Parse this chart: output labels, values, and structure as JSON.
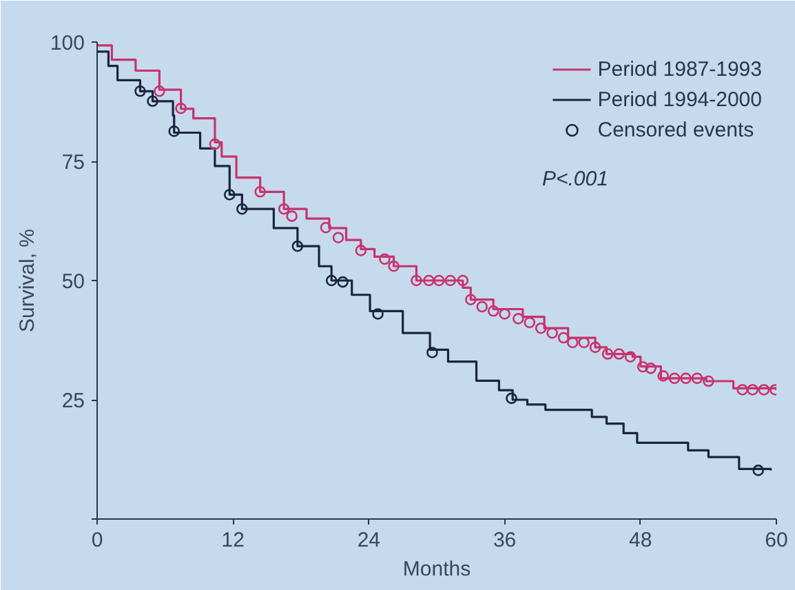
{
  "chart_data": {
    "type": "step",
    "xlabel": "Months",
    "ylabel": "Survival, %",
    "xlim": [
      0,
      60
    ],
    "ylim": [
      0,
      100
    ],
    "xticks": [
      0,
      12,
      24,
      36,
      48,
      60
    ],
    "yticks": [
      {
        "value": 0,
        "label": null
      },
      25,
      50,
      75,
      100
    ],
    "grid": false,
    "legend": "top right",
    "line_style": "solid",
    "series": [
      {
        "name": "Period 1987-1993",
        "color": "#c8336e",
        "x": [
          0,
          1.3,
          3.4,
          5.5,
          7.4,
          8.5,
          10.4,
          11,
          12.3,
          14.4,
          16.5,
          18.5,
          20.5,
          22,
          23.3,
          24.5,
          26.2,
          28.2,
          32.3,
          33,
          35,
          37.6,
          39.5,
          41.6,
          44,
          45,
          47.3,
          48,
          49.8,
          53.8,
          56.2,
          60
        ],
        "values": [
          99.3,
          96.3,
          94,
          90,
          86,
          84,
          79,
          76,
          71.6,
          68.6,
          65,
          63,
          61,
          58.5,
          56.6,
          55,
          53,
          50,
          48.5,
          46,
          44,
          42.4,
          40,
          38,
          36,
          34.6,
          34,
          32,
          29.5,
          28.9,
          27.4,
          27
        ]
      },
      {
        "name": "Period 1994-2000",
        "color": "#1a2540",
        "x": [
          0,
          1,
          1.8,
          3.8,
          4.9,
          6.7,
          6.8,
          9.1,
          10.4,
          11.7,
          12.8,
          15.6,
          17.7,
          19.6,
          20.7,
          22.5,
          24.1,
          27,
          29.4,
          31,
          33.5,
          35.5,
          36.7,
          38,
          39.6,
          43.7,
          45,
          46.5,
          47.7,
          52.2,
          54,
          56.7,
          59.5
        ],
        "values": [
          98,
          95,
          92,
          89.7,
          87.6,
          84.6,
          81,
          77.7,
          74,
          68,
          65,
          61,
          57.2,
          53,
          50,
          47,
          43.6,
          39,
          35.5,
          33,
          29,
          27,
          25,
          24,
          22.9,
          21.4,
          20,
          18,
          16,
          14.4,
          13,
          10.5,
          10.2
        ]
      },
      {
        "name": "Censored events",
        "type": "scatter",
        "marker": "circle",
        "color": "#1a2540",
        "x": [
          3.8,
          4.9,
          6.8,
          11.7,
          12.8,
          17.7,
          20.7,
          21.7,
          24.8,
          29.6,
          36.6,
          58.4
        ],
        "values": [
          89.7,
          87.6,
          81.3,
          68,
          65,
          57.2,
          50,
          49.7,
          43,
          34.9,
          25.3,
          10.2
        ]
      },
      {
        "type": "scatter",
        "marker": "circle",
        "color": "#c8336e",
        "x": [
          5.5,
          7.4,
          10.4,
          14.4,
          16.5,
          17.2,
          20.2,
          21.3,
          23.3,
          25.4,
          26.2,
          28.2,
          29.3,
          30.2,
          31.2,
          32.3,
          33,
          34,
          35,
          36,
          37.2,
          38.2,
          39.2,
          40.2,
          41.2,
          42,
          43,
          44,
          45.1,
          46.1,
          47.1,
          48.2,
          48.9,
          50,
          51,
          52,
          53,
          54,
          57,
          57.9,
          58.9,
          59.9
        ],
        "values": [
          89.7,
          86.1,
          78.6,
          68.6,
          65,
          63.5,
          61.1,
          59,
          56.3,
          54.5,
          53,
          50,
          50,
          50,
          50,
          50,
          46,
          44.5,
          43.6,
          43,
          42,
          41.2,
          40,
          39,
          38,
          37,
          37,
          36,
          34.6,
          34.6,
          34,
          31.9,
          31.6,
          30,
          29.5,
          29.5,
          29.5,
          28.9,
          27.1,
          27.1,
          27.1,
          27.1
        ]
      }
    ],
    "annotations": [
      "P<.001"
    ]
  }
}
